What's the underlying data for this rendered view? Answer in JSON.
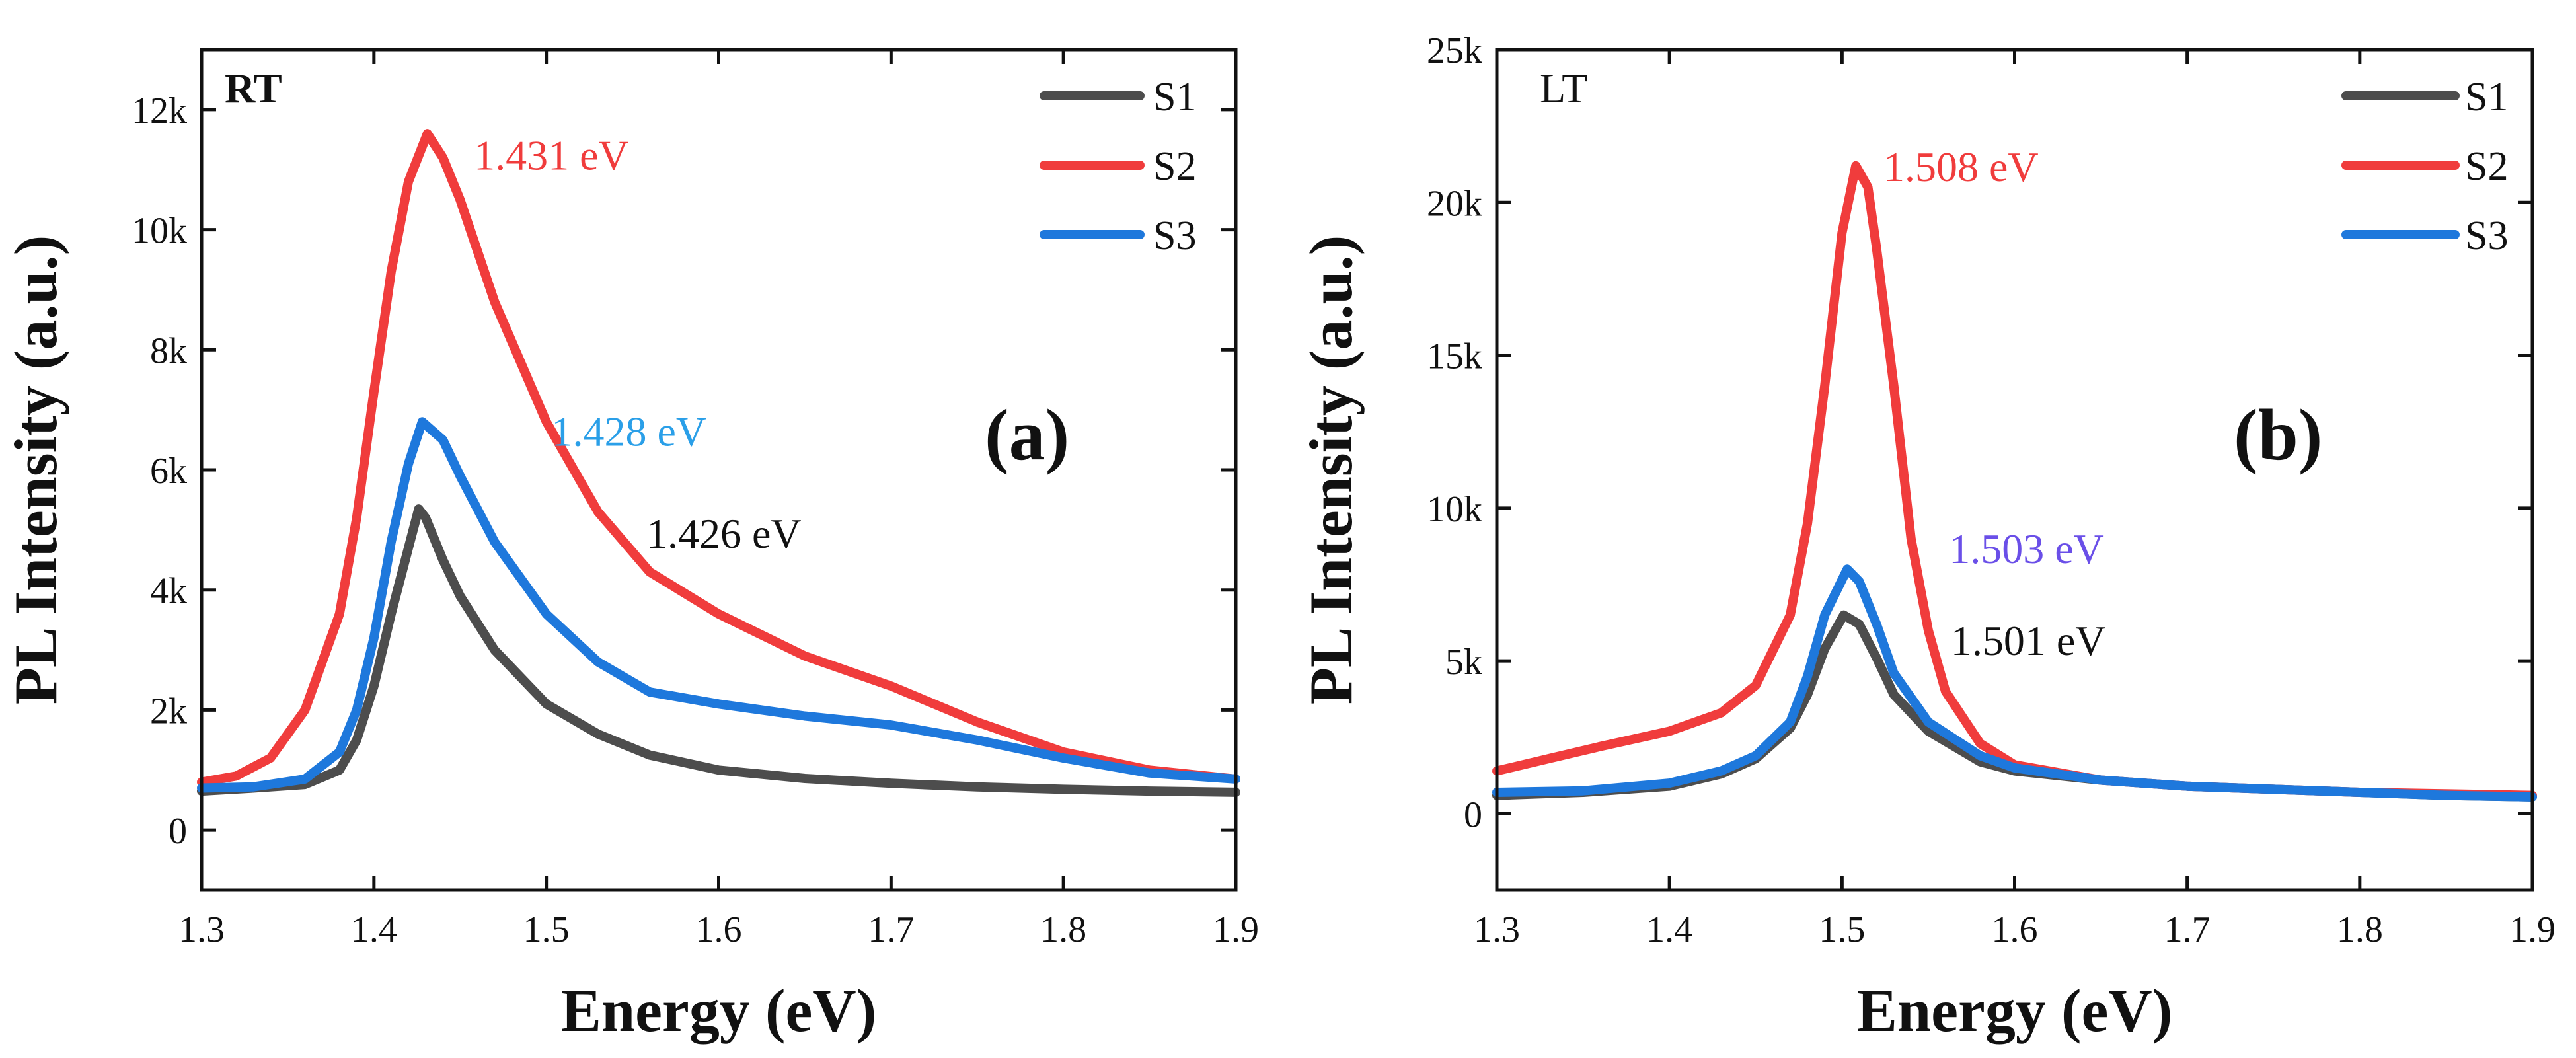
{
  "chart_data": [
    {
      "type": "line",
      "panel_label": "(a)",
      "condition_label": "RT",
      "xlabel": "Energy (eV)",
      "ylabel": "PL Intensity (a.u.)",
      "xlim": [
        1.3,
        1.9
      ],
      "ylim": [
        -1000,
        13000
      ],
      "x_ticks": [
        1.3,
        1.4,
        1.5,
        1.6,
        1.7,
        1.8,
        1.9
      ],
      "x_tick_labels": [
        "1.3",
        "1.4",
        "1.5",
        "1.6",
        "1.7",
        "1.8",
        "1.9"
      ],
      "y_ticks": [
        0,
        2000,
        4000,
        6000,
        8000,
        10000,
        12000
      ],
      "y_tick_labels": [
        "0",
        "2k",
        "4k",
        "6k",
        "8k",
        "10k",
        "12k"
      ],
      "legend_position": "top-right",
      "grid": false,
      "series": [
        {
          "name": "S1",
          "color": "#4d4d4d",
          "points": [
            [
              1.3,
              650
            ],
            [
              1.33,
              700
            ],
            [
              1.36,
              760
            ],
            [
              1.38,
              1000
            ],
            [
              1.39,
              1500
            ],
            [
              1.4,
              2400
            ],
            [
              1.41,
              3600
            ],
            [
              1.42,
              4700
            ],
            [
              1.426,
              5350
            ],
            [
              1.43,
              5200
            ],
            [
              1.44,
              4500
            ],
            [
              1.45,
              3900
            ],
            [
              1.47,
              3000
            ],
            [
              1.5,
              2100
            ],
            [
              1.53,
              1600
            ],
            [
              1.56,
              1250
            ],
            [
              1.6,
              1000
            ],
            [
              1.65,
              860
            ],
            [
              1.7,
              780
            ],
            [
              1.75,
              720
            ],
            [
              1.8,
              680
            ],
            [
              1.85,
              650
            ],
            [
              1.9,
              630
            ]
          ]
        },
        {
          "name": "S2",
          "color": "#f03c3c",
          "points": [
            [
              1.3,
              800
            ],
            [
              1.32,
              900
            ],
            [
              1.34,
              1200
            ],
            [
              1.36,
              2000
            ],
            [
              1.38,
              3600
            ],
            [
              1.39,
              5200
            ],
            [
              1.4,
              7300
            ],
            [
              1.41,
              9300
            ],
            [
              1.42,
              10800
            ],
            [
              1.431,
              11600
            ],
            [
              1.44,
              11200
            ],
            [
              1.45,
              10500
            ],
            [
              1.47,
              8800
            ],
            [
              1.5,
              6800
            ],
            [
              1.53,
              5300
            ],
            [
              1.56,
              4300
            ],
            [
              1.6,
              3600
            ],
            [
              1.65,
              2900
            ],
            [
              1.7,
              2400
            ],
            [
              1.75,
              1800
            ],
            [
              1.8,
              1300
            ],
            [
              1.85,
              1000
            ],
            [
              1.9,
              850
            ]
          ]
        },
        {
          "name": "S3",
          "color": "#1e78dc",
          "points": [
            [
              1.3,
              700
            ],
            [
              1.33,
              720
            ],
            [
              1.36,
              850
            ],
            [
              1.38,
              1300
            ],
            [
              1.39,
              2000
            ],
            [
              1.4,
              3200
            ],
            [
              1.41,
              4800
            ],
            [
              1.42,
              6100
            ],
            [
              1.428,
              6800
            ],
            [
              1.44,
              6500
            ],
            [
              1.45,
              5900
            ],
            [
              1.47,
              4800
            ],
            [
              1.5,
              3600
            ],
            [
              1.53,
              2800
            ],
            [
              1.56,
              2300
            ],
            [
              1.6,
              2100
            ],
            [
              1.65,
              1900
            ],
            [
              1.7,
              1750
            ],
            [
              1.75,
              1500
            ],
            [
              1.8,
              1200
            ],
            [
              1.85,
              950
            ],
            [
              1.9,
              850
            ]
          ]
        }
      ],
      "annotations": [
        {
          "text": "1.431 eV",
          "color": "#f03c3c",
          "x": 1.458,
          "y": 11000
        },
        {
          "text": "1.428 eV",
          "color": "#2a9fe8",
          "x": 1.503,
          "y": 6400
        },
        {
          "text": "1.426 eV",
          "color": "#111111",
          "x": 1.558,
          "y": 4700
        }
      ]
    },
    {
      "type": "line",
      "panel_label": "(b)",
      "condition_label": "LT",
      "xlabel": "Energy (eV)",
      "ylabel": "PL Intensity (a.u.)",
      "xlim": [
        1.3,
        1.9
      ],
      "ylim": [
        -2500,
        25000
      ],
      "x_ticks": [
        1.3,
        1.4,
        1.5,
        1.6,
        1.7,
        1.8,
        1.9
      ],
      "x_tick_labels": [
        "1.3",
        "1.4",
        "1.5",
        "1.6",
        "1.7",
        "1.8",
        "1.9"
      ],
      "y_ticks": [
        0,
        5000,
        10000,
        15000,
        20000,
        25000
      ],
      "y_tick_labels": [
        "0",
        "5k",
        "10k",
        "15k",
        "20k",
        "25k"
      ],
      "legend_position": "top-right",
      "grid": false,
      "series": [
        {
          "name": "S1",
          "color": "#4d4d4d",
          "points": [
            [
              1.3,
              600
            ],
            [
              1.35,
              700
            ],
            [
              1.4,
              900
            ],
            [
              1.43,
              1300
            ],
            [
              1.45,
              1800
            ],
            [
              1.47,
              2800
            ],
            [
              1.48,
              3900
            ],
            [
              1.49,
              5400
            ],
            [
              1.501,
              6500
            ],
            [
              1.51,
              6200
            ],
            [
              1.52,
              5100
            ],
            [
              1.53,
              3900
            ],
            [
              1.55,
              2700
            ],
            [
              1.58,
              1700
            ],
            [
              1.6,
              1400
            ],
            [
              1.65,
              1100
            ],
            [
              1.7,
              900
            ],
            [
              1.75,
              800
            ],
            [
              1.8,
              700
            ],
            [
              1.85,
              600
            ],
            [
              1.9,
              550
            ]
          ]
        },
        {
          "name": "S2",
          "color": "#f03c3c",
          "points": [
            [
              1.3,
              1400
            ],
            [
              1.33,
              1800
            ],
            [
              1.36,
              2200
            ],
            [
              1.4,
              2700
            ],
            [
              1.43,
              3300
            ],
            [
              1.45,
              4200
            ],
            [
              1.47,
              6500
            ],
            [
              1.48,
              9500
            ],
            [
              1.49,
              14000
            ],
            [
              1.5,
              19000
            ],
            [
              1.508,
              21200
            ],
            [
              1.515,
              20500
            ],
            [
              1.52,
              18500
            ],
            [
              1.53,
              14000
            ],
            [
              1.54,
              9000
            ],
            [
              1.55,
              6000
            ],
            [
              1.56,
              4000
            ],
            [
              1.58,
              2300
            ],
            [
              1.6,
              1600
            ],
            [
              1.65,
              1100
            ],
            [
              1.7,
              900
            ],
            [
              1.75,
              800
            ],
            [
              1.8,
              700
            ],
            [
              1.85,
              650
            ],
            [
              1.9,
              600
            ]
          ]
        },
        {
          "name": "S3",
          "color": "#1e78dc",
          "points": [
            [
              1.3,
              700
            ],
            [
              1.35,
              750
            ],
            [
              1.4,
              1000
            ],
            [
              1.43,
              1400
            ],
            [
              1.45,
              1900
            ],
            [
              1.47,
              3000
            ],
            [
              1.48,
              4500
            ],
            [
              1.49,
              6500
            ],
            [
              1.503,
              8000
            ],
            [
              1.51,
              7600
            ],
            [
              1.52,
              6200
            ],
            [
              1.53,
              4600
            ],
            [
              1.55,
              3000
            ],
            [
              1.58,
              1900
            ],
            [
              1.6,
              1500
            ],
            [
              1.65,
              1100
            ],
            [
              1.7,
              900
            ],
            [
              1.75,
              800
            ],
            [
              1.8,
              700
            ],
            [
              1.85,
              600
            ],
            [
              1.9,
              550
            ]
          ]
        }
      ],
      "annotations": [
        {
          "text": "1.508 eV",
          "color": "#f03c3c",
          "x": 1.524,
          "y": 20700
        },
        {
          "text": "1.503 eV",
          "color": "#6a4fe8",
          "x": 1.562,
          "y": 8200
        },
        {
          "text": "1.501 eV",
          "color": "#111111",
          "x": 1.563,
          "y": 5200
        }
      ]
    }
  ]
}
